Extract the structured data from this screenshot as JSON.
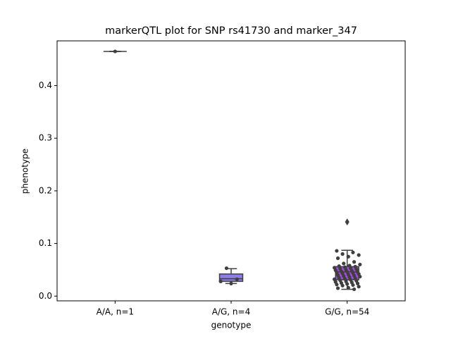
{
  "chart_data": {
    "type": "box",
    "title": "markerQTL plot for SNP rs41730 and marker_347",
    "x_label": "genotype",
    "y_label": "phenotype",
    "categories": [
      "A/A, n=1",
      "A/G, n=4",
      "G/G, n=54"
    ],
    "ylim": [
      -0.009,
      0.485
    ],
    "yticks": [
      {
        "value": 0,
        "label": "0.0"
      },
      0.1,
      0.2,
      0.3,
      0.4
    ],
    "boxes": [
      {
        "color": "#8c8ce0",
        "min": 0.465,
        "q1": 0.465,
        "median": 0.465,
        "q3": 0.465,
        "max": 0.465,
        "outliers": [],
        "points": [
          0.465
        ]
      },
      {
        "color": "#8c7fe8",
        "min": 0.024,
        "q1": 0.028,
        "median": 0.033,
        "q3": 0.042,
        "max": 0.052,
        "outliers": [],
        "points": [
          0.024,
          0.028,
          0.032,
          0.053
        ]
      },
      {
        "color": "#a64be0",
        "min": 0.013,
        "q1": 0.031,
        "median": 0.046,
        "q3": 0.056,
        "max": 0.087,
        "outliers": [
          0.141
        ],
        "points": [
          0.141,
          0.086,
          0.083,
          0.08,
          0.078,
          0.075,
          0.072,
          0.065,
          0.062,
          0.06,
          0.058,
          0.057,
          0.056,
          0.055,
          0.054,
          0.053,
          0.052,
          0.051,
          0.05,
          0.049,
          0.048,
          0.047,
          0.046,
          0.046,
          0.045,
          0.044,
          0.043,
          0.042,
          0.041,
          0.04,
          0.039,
          0.038,
          0.037,
          0.036,
          0.035,
          0.034,
          0.033,
          0.032,
          0.031,
          0.03,
          0.029,
          0.028,
          0.027,
          0.026,
          0.025,
          0.024,
          0.023,
          0.022,
          0.021,
          0.02,
          0.018,
          0.016,
          0.015,
          0.013
        ]
      }
    ]
  }
}
